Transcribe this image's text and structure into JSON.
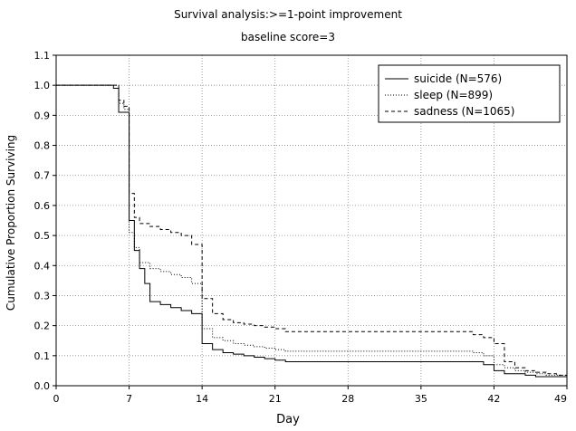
{
  "chart_data": {
    "type": "line",
    "title": "Survival analysis:>=1-point improvement",
    "subtitle": "baseline score=3",
    "xlabel": "Day",
    "ylabel": "Cumulative Proportion Surviving",
    "xlim": [
      0,
      49
    ],
    "ylim": [
      0.0,
      1.1
    ],
    "xticks": [
      "0",
      "7",
      "14",
      "21",
      "28",
      "35",
      "42",
      "49"
    ],
    "yticks": [
      "0.0",
      "0.1",
      "0.2",
      "0.3",
      "0.4",
      "0.5",
      "0.6",
      "0.7",
      "0.8",
      "0.9",
      "1.0",
      "1.1"
    ],
    "grid": true,
    "legend_position": "top-right",
    "series": [
      {
        "name": "suicide (N=576)",
        "style": "solid",
        "x": [
          0,
          5,
          5.5,
          6,
          7,
          7.5,
          8,
          8.5,
          9,
          10,
          11,
          12,
          13,
          14,
          15,
          16,
          17,
          18,
          19,
          20,
          21,
          22,
          40,
          41,
          42,
          43,
          44,
          45,
          46,
          47,
          48,
          49
        ],
        "y": [
          1.0,
          1.0,
          0.99,
          0.91,
          0.55,
          0.45,
          0.39,
          0.34,
          0.28,
          0.27,
          0.26,
          0.25,
          0.24,
          0.14,
          0.12,
          0.11,
          0.105,
          0.1,
          0.095,
          0.09,
          0.085,
          0.08,
          0.08,
          0.07,
          0.05,
          0.04,
          0.04,
          0.035,
          0.03,
          0.03,
          0.03,
          0.025
        ]
      },
      {
        "name": "sleep (N=899)",
        "style": "dotted",
        "x": [
          0,
          5,
          6,
          6.5,
          7,
          7.5,
          8,
          9,
          10,
          11,
          12,
          13,
          14,
          15,
          16,
          17,
          18,
          19,
          20,
          21,
          22,
          40,
          41,
          42,
          43,
          44,
          45,
          46,
          47,
          48,
          49
        ],
        "y": [
          1.0,
          1.0,
          0.94,
          0.92,
          0.51,
          0.46,
          0.41,
          0.39,
          0.38,
          0.37,
          0.36,
          0.34,
          0.19,
          0.16,
          0.15,
          0.14,
          0.135,
          0.13,
          0.125,
          0.12,
          0.115,
          0.11,
          0.1,
          0.07,
          0.06,
          0.05,
          0.045,
          0.04,
          0.035,
          0.035,
          0.03
        ]
      },
      {
        "name": "sadness (N=1065)",
        "style": "dashed",
        "x": [
          0,
          5,
          6,
          6.5,
          7,
          7.5,
          8,
          9,
          10,
          11,
          12,
          13,
          14,
          15,
          16,
          17,
          18,
          19,
          20,
          21,
          22,
          40,
          41,
          42,
          43,
          44,
          45,
          46,
          47,
          48,
          49
        ],
        "y": [
          1.0,
          1.0,
          0.95,
          0.93,
          0.64,
          0.56,
          0.54,
          0.53,
          0.52,
          0.51,
          0.5,
          0.47,
          0.29,
          0.24,
          0.22,
          0.21,
          0.205,
          0.2,
          0.195,
          0.19,
          0.18,
          0.17,
          0.16,
          0.14,
          0.08,
          0.06,
          0.05,
          0.045,
          0.04,
          0.035,
          0.03
        ]
      }
    ]
  }
}
